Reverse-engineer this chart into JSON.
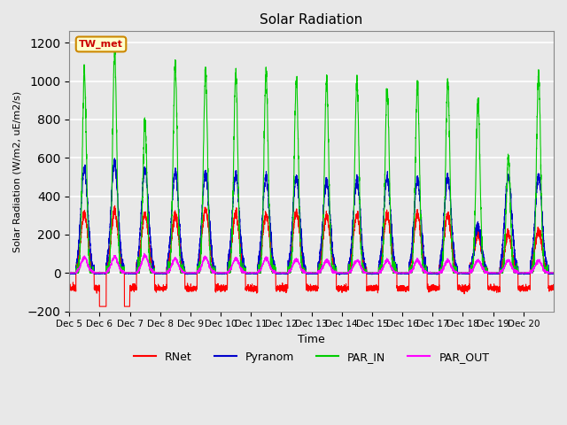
{
  "title": "Solar Radiation",
  "ylabel": "Solar Radiation (W/m2, uE/m2/s)",
  "xlabel": "Time",
  "ylim": [
    -200,
    1260
  ],
  "station_label": "TW_met",
  "n_days": 16,
  "xtick_labels": [
    "Dec 5",
    "Dec 6",
    "Dec 7",
    "Dec 8",
    "Dec 9",
    "Dec 10",
    "Dec 11",
    "Dec 12",
    "Dec 13",
    "Dec 14",
    "Dec 15",
    "Dec 16",
    "Dec 17",
    "Dec 18",
    "Dec 19",
    "Dec 20"
  ],
  "yticks": [
    -200,
    0,
    200,
    400,
    600,
    800,
    1000,
    1200
  ],
  "legend_entries": [
    {
      "label": "RNet",
      "color": "#ff0000"
    },
    {
      "label": "Pyranom",
      "color": "#0000cc"
    },
    {
      "label": "PAR_IN",
      "color": "#00cc00"
    },
    {
      "label": "PAR_OUT",
      "color": "#ff00ff"
    }
  ],
  "rnet_peaks": [
    310,
    320,
    310,
    300,
    330,
    310,
    300,
    315,
    300,
    300,
    300,
    305,
    305,
    205,
    200,
    220
  ],
  "rnet_night": -80,
  "rnet_min_day6": -175,
  "pyranom_peaks": [
    540,
    570,
    545,
    530,
    515,
    510,
    500,
    500,
    480,
    490,
    500,
    480,
    500,
    245,
    500,
    500
  ],
  "par_in_peaks": [
    1040,
    1155,
    790,
    1080,
    1050,
    1040,
    1050,
    1000,
    1005,
    1000,
    960,
    980,
    1000,
    890,
    595,
    1030
  ],
  "par_out_peaks": [
    80,
    85,
    90,
    75,
    80,
    75,
    75,
    70,
    65,
    65,
    65,
    65,
    65,
    65,
    65,
    65
  ]
}
